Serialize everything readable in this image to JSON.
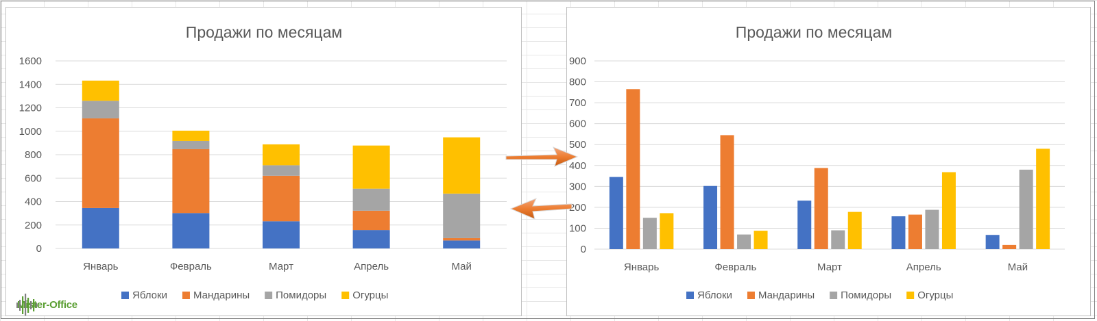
{
  "logo": {
    "text": "Mister-Office"
  },
  "colors": {
    "Яблоки": "#4472c4",
    "Мандарины": "#ed7d31",
    "Помидоры": "#a5a5a5",
    "Огурцы": "#ffc000",
    "arrow": "#ed7d31",
    "grid": "#d9d9d9"
  },
  "chart_data": [
    {
      "type": "bar",
      "stacked": true,
      "title": "Продажи по месяцам",
      "categories": [
        "Январь",
        "Февраль",
        "Март",
        "Апрель",
        "Май"
      ],
      "series": [
        {
          "name": "Яблоки",
          "values": [
            345,
            302,
            232,
            157,
            68
          ]
        },
        {
          "name": "Мандарины",
          "values": [
            765,
            545,
            388,
            165,
            20
          ]
        },
        {
          "name": "Помидоры",
          "values": [
            150,
            70,
            90,
            188,
            380
          ]
        },
        {
          "name": "Огурцы",
          "values": [
            172,
            88,
            178,
            368,
            480
          ]
        }
      ],
      "ylim": [
        0,
        1600
      ],
      "yticks": [
        "0",
        "200",
        "400",
        "600",
        "800",
        "1000",
        "1200",
        "1400",
        "1600"
      ],
      "grid": true,
      "legend": "bottom"
    },
    {
      "type": "bar",
      "stacked": false,
      "title": "Продажи по месяцам",
      "categories": [
        "Январь",
        "Февраль",
        "Март",
        "Апрель",
        "Май"
      ],
      "series": [
        {
          "name": "Яблоки",
          "values": [
            345,
            302,
            232,
            157,
            68
          ]
        },
        {
          "name": "Мандарины",
          "values": [
            765,
            545,
            388,
            165,
            20
          ]
        },
        {
          "name": "Помидоры",
          "values": [
            150,
            70,
            90,
            188,
            380
          ]
        },
        {
          "name": "Огурцы",
          "values": [
            172,
            88,
            178,
            368,
            480
          ]
        }
      ],
      "ylim": [
        0,
        900
      ],
      "yticks": [
        "0",
        "100",
        "200",
        "300",
        "400",
        "500",
        "600",
        "700",
        "800",
        "900"
      ],
      "grid": true,
      "legend": "bottom"
    }
  ]
}
